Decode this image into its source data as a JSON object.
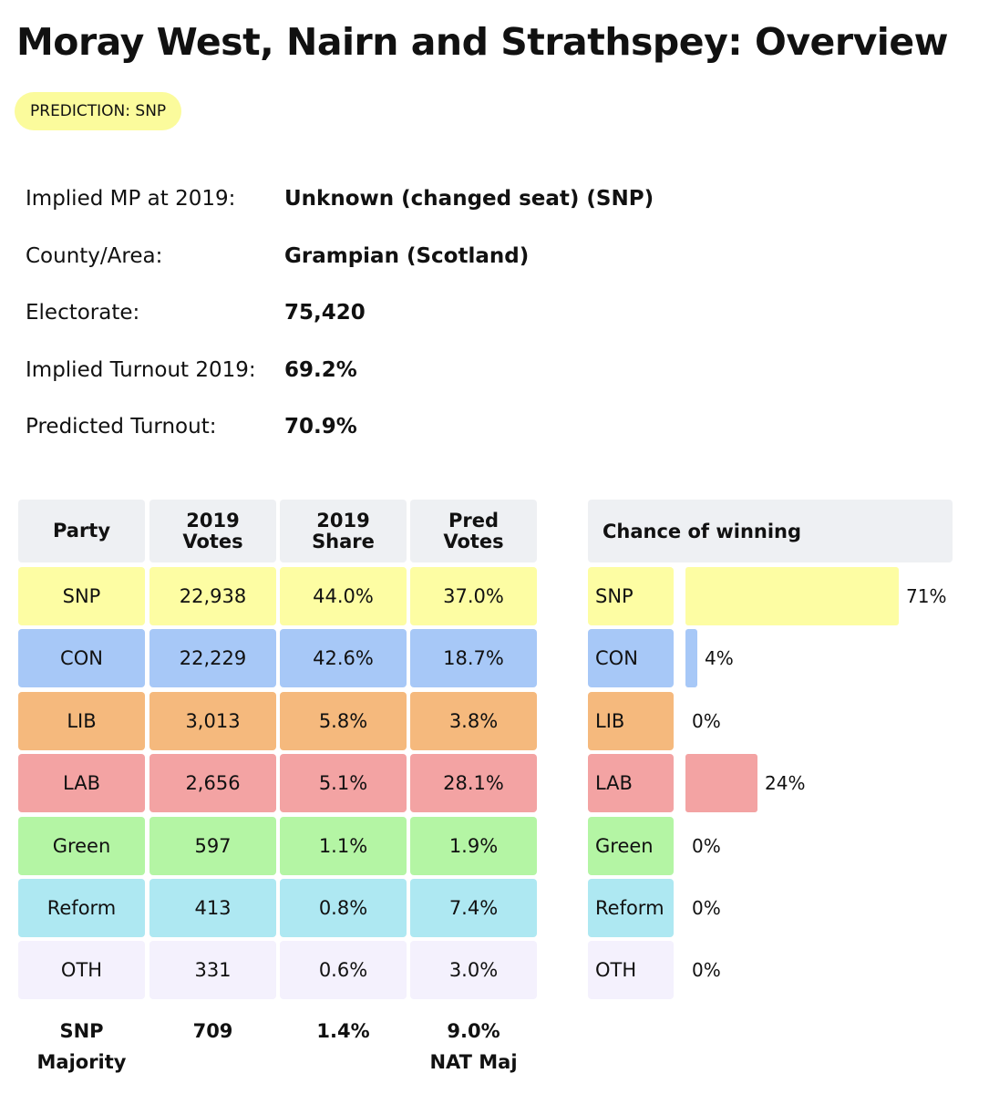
{
  "title": "Moray West, Nairn and Strathspey: Overview",
  "prediction": {
    "label": "PREDICTION: SNP",
    "color": "#fbfb9c"
  },
  "info": [
    {
      "label": "Implied MP at 2019:",
      "value": "Unknown (changed seat)  (SNP)"
    },
    {
      "label": "County/Area:",
      "value": "Grampian (Scotland)"
    },
    {
      "label": "Electorate:",
      "value": "75,420"
    },
    {
      "label": "Implied Turnout 2019:",
      "value": "69.2%"
    },
    {
      "label": "Predicted Turnout:",
      "value": "70.9%"
    }
  ],
  "table": {
    "headers": [
      {
        "line1": "Party",
        "line2": ""
      },
      {
        "line1": "2019",
        "line2": "Votes"
      },
      {
        "line1": "2019",
        "line2": "Share"
      },
      {
        "line1": "Pred",
        "line2": "Votes"
      }
    ],
    "rows": [
      {
        "party": "SNP",
        "votes": "22,938",
        "share": "44.0%",
        "pred": "37.0%",
        "color": "#fdfda3"
      },
      {
        "party": "CON",
        "votes": "22,229",
        "share": "42.6%",
        "pred": "18.7%",
        "color": "#a7c8f7"
      },
      {
        "party": "LIB",
        "votes": "3,013",
        "share": "5.8%",
        "pred": "3.8%",
        "color": "#f5b97d"
      },
      {
        "party": "LAB",
        "votes": "2,656",
        "share": "5.1%",
        "pred": "28.1%",
        "color": "#f3a3a3"
      },
      {
        "party": "Green",
        "votes": "597",
        "share": "1.1%",
        "pred": "1.9%",
        "color": "#b4f5a4"
      },
      {
        "party": "Reform",
        "votes": "413",
        "share": "0.8%",
        "pred": "7.4%",
        "color": "#aee8f2"
      },
      {
        "party": "OTH",
        "votes": "331",
        "share": "0.6%",
        "pred": "3.0%",
        "color": "#f4f1fd"
      }
    ],
    "footer": [
      {
        "line1": "SNP",
        "line2": "Majority"
      },
      {
        "line1": "709",
        "line2": ""
      },
      {
        "line1": "1.4%",
        "line2": ""
      },
      {
        "line1": "9.0%",
        "line2": "NAT Maj"
      }
    ]
  },
  "chance": {
    "header": "Chance of winning",
    "rows": [
      {
        "party": "SNP",
        "value": 71,
        "label": "71%"
      },
      {
        "party": "CON",
        "value": 4,
        "label": "4%"
      },
      {
        "party": "LIB",
        "value": 0,
        "label": "0%"
      },
      {
        "party": "LAB",
        "value": 24,
        "label": "24%"
      },
      {
        "party": "Green",
        "value": 0,
        "label": "0%"
      },
      {
        "party": "Reform",
        "value": 0,
        "label": "0%"
      },
      {
        "party": "OTH",
        "value": 0,
        "label": "0%"
      }
    ]
  },
  "colors": {
    "header_bg": "#eef0f3"
  }
}
